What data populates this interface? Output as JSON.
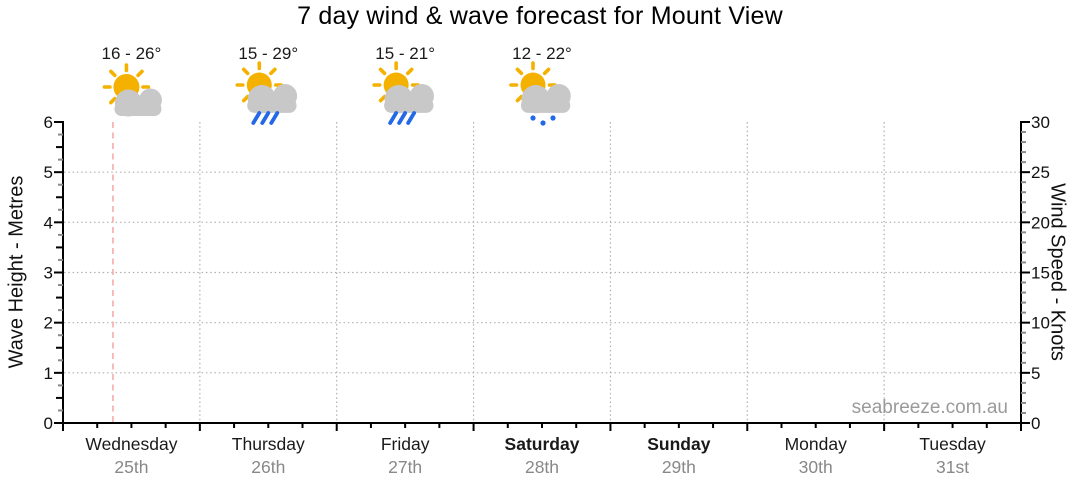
{
  "watermark": "seabreeze.com.au",
  "colors": {
    "sun": "#f5b100",
    "cloud": "#c8c8c8",
    "rain": "#2268e8",
    "now_line": "#f6abab",
    "grid": "#b0b0b0",
    "axis": "#000000",
    "minor_tick": "#8a8a8a",
    "tick_label": "#111111",
    "date_text": "#888888",
    "watermark_text": "#9a9a9a"
  },
  "chart_data": {
    "type": "line",
    "title": "7 day wind & wave forecast for Mount View",
    "subtitle": "",
    "series": [],
    "grid": true,
    "left_axis": {
      "label": "Wave Height - Metres",
      "min": 0,
      "max": 6,
      "major_tick_step": 1,
      "minor_tick_step": 0.25,
      "tick_labels": [
        "0",
        "1",
        "2",
        "3",
        "4",
        "5",
        "6"
      ]
    },
    "right_axis": {
      "label": "Wind Speed - Knots",
      "min": 0,
      "max": 30,
      "major_tick_step": 5,
      "minor_tick_step": 1,
      "tick_labels": [
        "0",
        "5",
        "10",
        "15",
        "20",
        "25",
        "30"
      ]
    },
    "x_axis": {
      "minor_ticks_per_day": 4,
      "days": [
        {
          "name": "Wednesday",
          "date": "25th",
          "weekend": false,
          "temp": "16 - 26°",
          "icon": "sun-cloud-icon"
        },
        {
          "name": "Thursday",
          "date": "26th",
          "weekend": false,
          "temp": "15 - 29°",
          "icon": "sun-cloud-rain-icon"
        },
        {
          "name": "Friday",
          "date": "27th",
          "weekend": false,
          "temp": "15 - 21°",
          "icon": "sun-cloud-rain-icon"
        },
        {
          "name": "Saturday",
          "date": "28th",
          "weekend": true,
          "temp": "12 - 22°",
          "icon": "sun-cloud-showers-icon"
        },
        {
          "name": "Sunday",
          "date": "29th",
          "weekend": true,
          "temp": null,
          "icon": null
        },
        {
          "name": "Monday",
          "date": "30th",
          "weekend": false,
          "temp": null,
          "icon": null
        },
        {
          "name": "Tuesday",
          "date": "31st",
          "weekend": false,
          "temp": null,
          "icon": null
        }
      ]
    },
    "now_marker": {
      "day_index": 0,
      "day_fraction": 0.365
    }
  }
}
